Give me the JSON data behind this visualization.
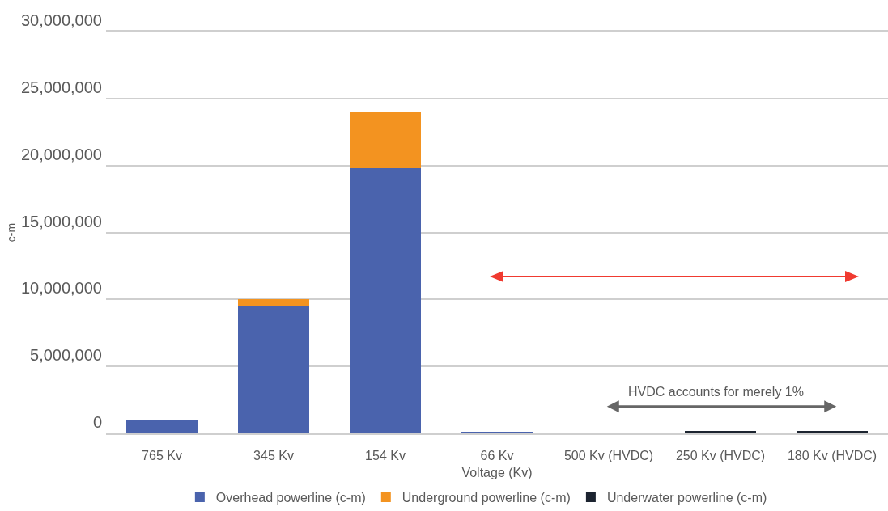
{
  "chart_data": {
    "type": "bar",
    "stacked": true,
    "xlabel": "Voltage (Kv)",
    "ylabel": "c-m",
    "categories": [
      "765 Kv",
      "345 Kv",
      "154 Kv",
      "66 Kv",
      "500 Kv (HVDC)",
      "250 Kv (HVDC)",
      "180 Kv (HVDC)"
    ],
    "series": [
      {
        "name": "Overhead powerline (c-m)",
        "color": "#4a63ad",
        "values": [
          1000000,
          9500000,
          19800000,
          100000,
          null,
          null,
          null
        ]
      },
      {
        "name": "Underground powerline (c-m)",
        "color": "#f39320",
        "values": [
          null,
          500000,
          4200000,
          null,
          50000,
          null,
          null
        ]
      },
      {
        "name": "Underwater powerline (c-m)",
        "color": "#1c2430",
        "values": [
          null,
          null,
          null,
          null,
          null,
          200000,
          200000
        ]
      }
    ],
    "ylim": [
      0,
      30000000
    ],
    "yticks": [
      0,
      {
        "value": 5000000,
        "label": "5,000,000"
      },
      {
        "value": 10000000,
        "label": "10,000,000"
      },
      {
        "value": 15000000,
        "label": "15,000,000"
      },
      {
        "value": 20000000,
        "label": "20,000,000"
      },
      {
        "value": 25000000,
        "label": "25,000,000"
      },
      {
        "value": 30000000,
        "label": "30,000,000"
      }
    ],
    "grid": "y",
    "legend": "bottom",
    "annotations": [
      "HVDC accounts for merely 1%"
    ]
  }
}
